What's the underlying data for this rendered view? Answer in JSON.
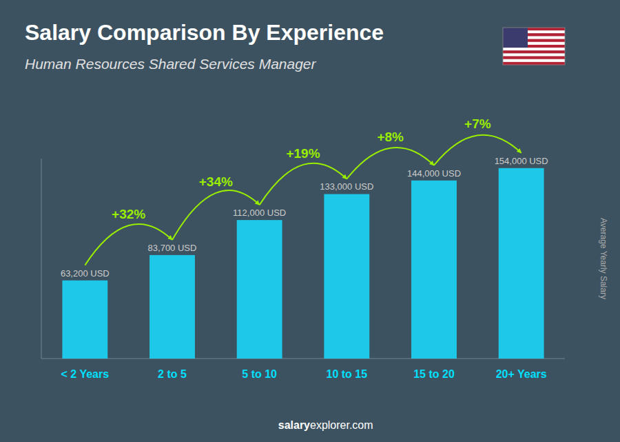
{
  "chart_data": {
    "type": "bar",
    "title": "Salary Comparison By Experience",
    "subtitle": "Human Resources Shared Services Manager",
    "categories": [
      "< 2 Years",
      "2 to 5",
      "5 to 10",
      "10 to 15",
      "15 to 20",
      "20+ Years"
    ],
    "values": [
      63200,
      83700,
      112000,
      133000,
      144000,
      154000
    ],
    "value_labels": [
      "63,200 USD",
      "83,700 USD",
      "112,000 USD",
      "133,000 USD",
      "144,000 USD",
      "154,000 USD"
    ],
    "data_labels": true,
    "annotations": [
      "+32%",
      "+34%",
      "+19%",
      "+8%",
      "+7%"
    ],
    "ylabel": "Average Yearly Salary",
    "footer": [
      "salary",
      "explorer.com"
    ],
    "color": "#1ec8e8",
    "ylim": [
      0,
      161700
    ],
    "grid": false,
    "tick_labels": "x"
  }
}
